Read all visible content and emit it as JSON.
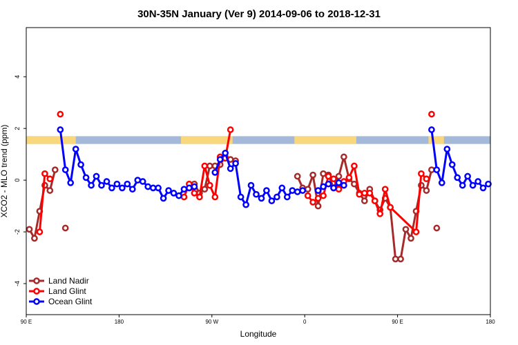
{
  "chart_data": {
    "type": "line",
    "title": "30N-35N January (Ver 9)   2014-09-06 to 2018-12-31",
    "xlabel": "Longitude",
    "ylabel": "XCO2 - MLO trend (ppm)",
    "x_ticks": [
      {
        "pos": 0,
        "label": "90 E"
      },
      {
        "pos": 90,
        "label": "180"
      },
      {
        "pos": 180,
        "label": "90 W"
      },
      {
        "pos": 270,
        "label": "0"
      },
      {
        "pos": 360,
        "label": "90 E"
      },
      {
        "pos": 450,
        "label": "180"
      }
    ],
    "y_ticks": [
      -4,
      -2,
      0,
      2,
      4
    ],
    "xlim": [
      0,
      450
    ],
    "ylim": [
      -5.2,
      5.9
    ],
    "land_ocean_band": {
      "ymin": 1.4,
      "ymax": 1.7,
      "ocean_color": "#a4b9d9",
      "land_color": "#f9d77c",
      "land_ranges": [
        [
          0,
          48
        ],
        [
          150,
          200
        ],
        [
          260,
          320
        ],
        [
          390,
          405
        ]
      ]
    },
    "legend": {
      "position": "bottom-left",
      "entries": [
        {
          "label": "Land Nadir",
          "color": "#a52a2a"
        },
        {
          "label": "Land Glint",
          "color": "#ff0000"
        },
        {
          "label": "Ocean Glint",
          "color": "#0000ff"
        }
      ]
    },
    "series": [
      {
        "name": "Land Nadir",
        "color": "#a52a2a",
        "segments": [
          [
            [
              3,
              -1.9
            ],
            [
              8,
              -2.25
            ],
            [
              13,
              -1.2
            ],
            [
              18,
              -0.2
            ],
            [
              23,
              -0.4
            ],
            [
              28,
              0.4
            ]
          ],
          [
            [
              163,
              -0.15
            ],
            [
              168,
              -0.5
            ],
            [
              173,
              -0.35
            ],
            [
              178,
              0.55
            ],
            [
              183,
              0.55
            ],
            [
              188,
              0.6
            ],
            [
              193,
              0.9
            ],
            [
              198,
              0.8
            ],
            [
              203,
              0.75
            ]
          ],
          [
            [
              263,
              0.15
            ],
            [
              268,
              -0.3
            ],
            [
              273,
              -0.35
            ],
            [
              278,
              0.2
            ],
            [
              283,
              -1.0
            ],
            [
              288,
              0.25
            ],
            [
              293,
              0.2
            ],
            [
              298,
              -0.3
            ],
            [
              303,
              0.15
            ],
            [
              308,
              0.9
            ],
            [
              313,
              0.05
            ],
            [
              318,
              -0.15
            ],
            [
              323,
              -0.5
            ],
            [
              328,
              -0.8
            ],
            [
              333,
              -0.35
            ],
            [
              338,
              -0.8
            ],
            [
              343,
              -1.15
            ],
            [
              348,
              -0.7
            ],
            [
              353,
              -1.05
            ],
            [
              358,
              -3.05
            ],
            [
              363,
              -3.05
            ],
            [
              368,
              -1.9
            ],
            [
              373,
              -2.25
            ],
            [
              378,
              -1.2
            ],
            [
              383,
              -0.2
            ],
            [
              388,
              -0.4
            ],
            [
              393,
              0.4
            ]
          ]
        ],
        "isolated": [
          [
            38,
            -1.85
          ],
          [
            398,
            -1.85
          ]
        ]
      },
      {
        "name": "Land Glint",
        "color": "#ff0000",
        "segments": [
          [
            [
              13,
              -2.0
            ],
            [
              18,
              0.25
            ],
            [
              23,
              0.05
            ]
          ],
          [
            [
              153,
              -0.65
            ],
            [
              158,
              -0.15
            ],
            [
              163,
              -0.5
            ],
            [
              168,
              -0.65
            ],
            [
              173,
              0.55
            ],
            [
              178,
              -0.2
            ],
            [
              183,
              -0.65
            ],
            [
              188,
              0.9
            ],
            [
              193,
              0.85
            ],
            [
              198,
              1.95
            ]
          ],
          [
            [
              273,
              -0.6
            ],
            [
              278,
              -0.85
            ],
            [
              283,
              -0.7
            ],
            [
              288,
              -0.6
            ],
            [
              293,
              0.15
            ],
            [
              298,
              0.05
            ],
            [
              303,
              -0.35
            ],
            [
              308,
              -0.05
            ],
            [
              313,
              0.1
            ],
            [
              318,
              0.55
            ],
            [
              323,
              -0.55
            ],
            [
              328,
              -0.5
            ],
            [
              333,
              -0.5
            ],
            [
              338,
              -0.8
            ],
            [
              343,
              -1.3
            ],
            [
              348,
              -0.35
            ],
            [
              353,
              -1.05
            ],
            [
              378,
              -2.0
            ],
            [
              383,
              0.25
            ],
            [
              388,
              0.05
            ]
          ]
        ],
        "isolated": [
          [
            33,
            2.55
          ],
          [
            393,
            2.55
          ]
        ]
      },
      {
        "name": "Ocean Glint",
        "color": "#0000ff",
        "segments": [
          [
            [
              33,
              1.95
            ],
            [
              38,
              0.4
            ],
            [
              43,
              -0.1
            ],
            [
              48,
              1.2
            ],
            [
              53,
              0.6
            ],
            [
              58,
              0.1
            ],
            [
              63,
              -0.2
            ],
            [
              68,
              0.15
            ],
            [
              73,
              -0.2
            ],
            [
              78,
              -0.05
            ],
            [
              83,
              -0.3
            ],
            [
              88,
              -0.15
            ],
            [
              93,
              -0.3
            ],
            [
              98,
              -0.15
            ],
            [
              103,
              -0.35
            ],
            [
              108,
              0.0
            ],
            [
              113,
              -0.05
            ],
            [
              118,
              -0.25
            ],
            [
              123,
              -0.3
            ],
            [
              128,
              -0.3
            ],
            [
              133,
              -0.7
            ],
            [
              138,
              -0.4
            ],
            [
              143,
              -0.5
            ],
            [
              148,
              -0.6
            ],
            [
              153,
              -0.35
            ],
            [
              158,
              -0.3
            ],
            [
              163,
              -0.25
            ]
          ],
          [
            [
              183,
              0.3
            ],
            [
              188,
              0.8
            ],
            [
              193,
              1.05
            ],
            [
              198,
              0.45
            ],
            [
              203,
              0.65
            ],
            [
              208,
              -0.65
            ],
            [
              213,
              -0.95
            ],
            [
              218,
              -0.2
            ],
            [
              223,
              -0.55
            ],
            [
              228,
              -0.7
            ],
            [
              233,
              -0.4
            ],
            [
              238,
              -0.8
            ],
            [
              243,
              -0.65
            ],
            [
              248,
              -0.3
            ],
            [
              253,
              -0.65
            ],
            [
              258,
              -0.4
            ],
            [
              263,
              -0.45
            ],
            [
              268,
              -0.4
            ]
          ],
          [
            [
              283,
              -0.4
            ],
            [
              288,
              -0.25
            ],
            [
              293,
              -0.15
            ],
            [
              298,
              -0.3
            ],
            [
              303,
              -0.1
            ],
            [
              308,
              -0.2
            ]
          ],
          [
            [
              393,
              1.95
            ],
            [
              398,
              0.4
            ],
            [
              403,
              -0.1
            ],
            [
              408,
              1.2
            ],
            [
              413,
              0.6
            ],
            [
              418,
              0.1
            ],
            [
              423,
              -0.2
            ],
            [
              428,
              0.15
            ],
            [
              433,
              -0.2
            ],
            [
              438,
              -0.05
            ],
            [
              443,
              -0.3
            ],
            [
              448,
              -0.15
            ]
          ]
        ],
        "isolated": []
      }
    ]
  }
}
